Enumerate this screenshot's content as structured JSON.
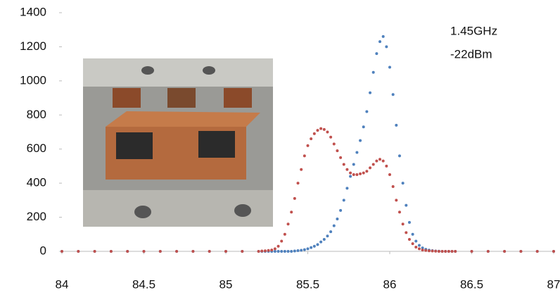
{
  "chart_data": {
    "type": "scatter",
    "annotations": [
      "1.45GHz",
      "-22dBm"
    ],
    "x": [
      84.0,
      84.1,
      84.2,
      84.3,
      84.4,
      84.5,
      84.6,
      84.7,
      84.8,
      84.9,
      85.0,
      85.1,
      85.2,
      85.22,
      85.24,
      85.26,
      85.28,
      85.3,
      85.32,
      85.34,
      85.36,
      85.38,
      85.4,
      85.42,
      85.44,
      85.46,
      85.48,
      85.5,
      85.52,
      85.54,
      85.56,
      85.58,
      85.6,
      85.62,
      85.64,
      85.66,
      85.68,
      85.7,
      85.72,
      85.74,
      85.76,
      85.78,
      85.8,
      85.82,
      85.84,
      85.86,
      85.88,
      85.9,
      85.92,
      85.94,
      85.96,
      85.98,
      86.0,
      86.02,
      86.04,
      86.06,
      86.08,
      86.1,
      86.12,
      86.14,
      86.16,
      86.18,
      86.2,
      86.22,
      86.24,
      86.26,
      86.28,
      86.3,
      86.32,
      86.34,
      86.36,
      86.38,
      86.4,
      86.5,
      86.6,
      86.7,
      86.8,
      86.9,
      87.0
    ],
    "series": [
      {
        "color": "#4f81bd",
        "values": [
          0,
          0,
          0,
          0,
          0,
          0,
          0,
          0,
          0,
          0,
          0,
          0,
          0,
          0,
          0,
          0,
          0,
          0,
          0,
          0,
          0,
          0,
          0,
          2,
          4,
          6,
          10,
          15,
          22,
          30,
          40,
          55,
          70,
          90,
          115,
          150,
          190,
          240,
          300,
          370,
          440,
          510,
          580,
          650,
          730,
          820,
          930,
          1050,
          1160,
          1230,
          1260,
          1200,
          1080,
          920,
          740,
          560,
          400,
          270,
          170,
          100,
          60,
          35,
          20,
          12,
          7,
          4,
          2,
          1,
          0,
          0,
          0,
          0,
          0,
          0,
          0,
          0,
          0,
          0,
          0
        ]
      },
      {
        "color": "#c0504d",
        "values": [
          0,
          0,
          0,
          0,
          0,
          0,
          0,
          0,
          0,
          0,
          0,
          0,
          0,
          2,
          3,
          5,
          8,
          15,
          30,
          60,
          100,
          160,
          230,
          310,
          400,
          480,
          560,
          620,
          660,
          690,
          710,
          720,
          715,
          700,
          670,
          630,
          590,
          550,
          510,
          480,
          460,
          450,
          450,
          455,
          460,
          470,
          490,
          510,
          530,
          540,
          530,
          500,
          450,
          380,
          300,
          230,
          160,
          110,
          70,
          45,
          25,
          15,
          8,
          5,
          3,
          2,
          1,
          0,
          0,
          0,
          0,
          0,
          0,
          0,
          0,
          0,
          0,
          0,
          0
        ]
      }
    ],
    "xlim": [
      84,
      87
    ],
    "xticks": [
      84,
      84.5,
      85,
      85.5,
      86,
      86.5,
      87
    ],
    "ylim": [
      0,
      1400
    ],
    "yticks": [
      0,
      200,
      400,
      600,
      800,
      1000,
      1200,
      1400
    ]
  }
}
